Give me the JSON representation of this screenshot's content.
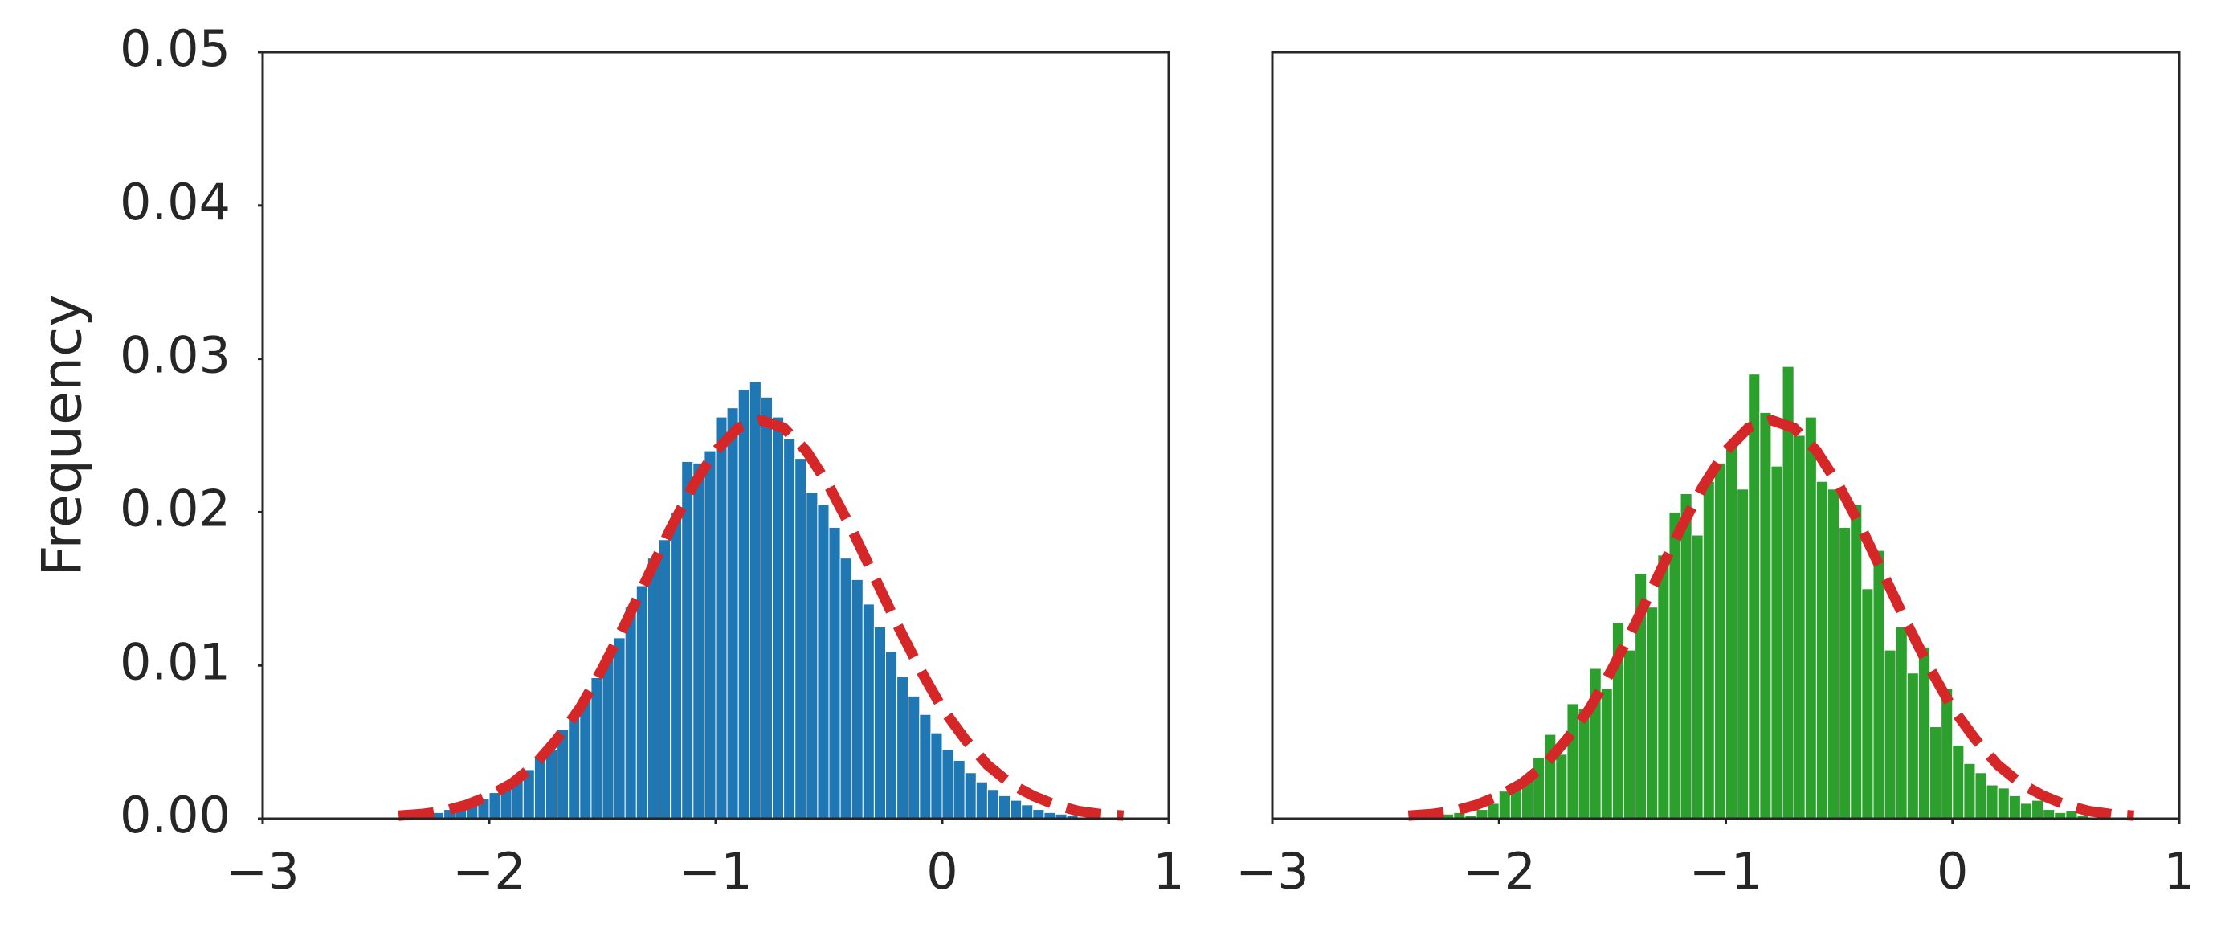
{
  "chart_data": [
    {
      "type": "histogram",
      "ylabel": "Frequency",
      "color": "#1f77b4",
      "bins": [
        -2.3,
        -2.25,
        -2.2,
        -2.15,
        -2.1,
        -2.05,
        -2.0,
        -1.95,
        -1.9,
        -1.85,
        -1.8,
        -1.75,
        -1.7,
        -1.65,
        -1.6,
        -1.55,
        -1.5,
        -1.45,
        -1.4,
        -1.35,
        -1.3,
        -1.25,
        -1.2,
        -1.15,
        -1.1,
        -1.05,
        -1.0,
        -0.95,
        -0.9,
        -0.85,
        -0.8,
        -0.75,
        -0.7,
        -0.65,
        -0.6,
        -0.55,
        -0.5,
        -0.45,
        -0.4,
        -0.35,
        -0.3,
        -0.25,
        -0.2,
        -0.15,
        -0.1,
        -0.05,
        0.0,
        0.05,
        0.1,
        0.15,
        0.2,
        0.25,
        0.3,
        0.35,
        0.4,
        0.45,
        0.5,
        0.55,
        0.6,
        0.65,
        0.7
      ],
      "values": [
        0.0002,
        0.0004,
        0.0006,
        0.0009,
        0.001,
        0.0013,
        0.0017,
        0.0021,
        0.0027,
        0.0032,
        0.004,
        0.0045,
        0.0058,
        0.0066,
        0.008,
        0.0092,
        0.0107,
        0.0118,
        0.0138,
        0.0152,
        0.017,
        0.0182,
        0.02,
        0.0233,
        0.0232,
        0.024,
        0.0262,
        0.0268,
        0.028,
        0.0285,
        0.0275,
        0.0262,
        0.0248,
        0.0235,
        0.0213,
        0.0205,
        0.019,
        0.017,
        0.0156,
        0.014,
        0.0125,
        0.0109,
        0.0093,
        0.008,
        0.0068,
        0.0056,
        0.0045,
        0.0038,
        0.003,
        0.0024,
        0.0019,
        0.0015,
        0.0012,
        0.0009,
        0.0006,
        0.0004,
        0.0003,
        0.0002,
        0.0001,
        0.0
      ],
      "fit": {
        "color": "#d62728",
        "x": [
          -2.4,
          -2.3,
          -2.2,
          -2.1,
          -2.0,
          -1.9,
          -1.8,
          -1.7,
          -1.6,
          -1.5,
          -1.4,
          -1.3,
          -1.2,
          -1.1,
          -1.0,
          -0.9,
          -0.8,
          -0.7,
          -0.6,
          -0.5,
          -0.4,
          -0.3,
          -0.2,
          -0.1,
          0.0,
          0.1,
          0.2,
          0.3,
          0.4,
          0.5,
          0.6,
          0.7,
          0.8
        ],
        "values": [
          0.0002,
          0.0003,
          0.0005,
          0.0009,
          0.0015,
          0.0023,
          0.0035,
          0.0052,
          0.0072,
          0.0098,
          0.0127,
          0.0158,
          0.0189,
          0.0217,
          0.024,
          0.0255,
          0.026,
          0.0255,
          0.024,
          0.0217,
          0.0189,
          0.0158,
          0.0127,
          0.0098,
          0.0072,
          0.0052,
          0.0035,
          0.0023,
          0.0015,
          0.0009,
          0.0005,
          0.0003,
          0.0002
        ]
      },
      "xlim": [
        -3,
        1
      ],
      "xticks": [
        {
          "value": -3,
          "label": "−3"
        },
        {
          "value": -2,
          "label": "−2"
        },
        {
          "value": -1,
          "label": "−1"
        },
        0,
        1
      ],
      "ylim": [
        0,
        0.05
      ],
      "yticks": [
        {
          "value": 0,
          "label": "0.00"
        },
        0.01,
        0.02,
        0.03,
        0.04,
        0.05
      ]
    },
    {
      "type": "histogram",
      "color": "#2ca02c",
      "bins": [
        -2.3,
        -2.25,
        -2.2,
        -2.15,
        -2.1,
        -2.05,
        -2.0,
        -1.95,
        -1.9,
        -1.85,
        -1.8,
        -1.75,
        -1.7,
        -1.65,
        -1.6,
        -1.55,
        -1.5,
        -1.45,
        -1.4,
        -1.35,
        -1.3,
        -1.25,
        -1.2,
        -1.15,
        -1.1,
        -1.05,
        -1.0,
        -0.95,
        -0.9,
        -0.85,
        -0.8,
        -0.75,
        -0.7,
        -0.65,
        -0.6,
        -0.55,
        -0.5,
        -0.45,
        -0.4,
        -0.35,
        -0.3,
        -0.25,
        -0.2,
        -0.15,
        -0.1,
        -0.05,
        0.0,
        0.05,
        0.1,
        0.15,
        0.2,
        0.25,
        0.3,
        0.35,
        0.4,
        0.45,
        0.5,
        0.55,
        0.6,
        0.65,
        0.7
      ],
      "values": [
        0.0,
        0.0003,
        0.0004,
        0.0002,
        0.0006,
        0.001,
        0.0018,
        0.002,
        0.0025,
        0.004,
        0.0055,
        0.0042,
        0.0075,
        0.0072,
        0.0098,
        0.0085,
        0.0128,
        0.011,
        0.016,
        0.0138,
        0.0172,
        0.02,
        0.0212,
        0.0185,
        0.022,
        0.0232,
        0.0245,
        0.0215,
        0.029,
        0.0265,
        0.023,
        0.0295,
        0.025,
        0.0262,
        0.022,
        0.0215,
        0.019,
        0.0205,
        0.015,
        0.0175,
        0.011,
        0.0125,
        0.0095,
        0.0112,
        0.006,
        0.0085,
        0.0048,
        0.0036,
        0.003,
        0.0022,
        0.002,
        0.0015,
        0.001,
        0.0012,
        0.0006,
        0.0004,
        0.0005,
        0.0002,
        0.0001,
        0.0
      ],
      "fit": {
        "color": "#d62728",
        "x": [
          -2.4,
          -2.3,
          -2.2,
          -2.1,
          -2.0,
          -1.9,
          -1.8,
          -1.7,
          -1.6,
          -1.5,
          -1.4,
          -1.3,
          -1.2,
          -1.1,
          -1.0,
          -0.9,
          -0.8,
          -0.7,
          -0.6,
          -0.5,
          -0.4,
          -0.3,
          -0.2,
          -0.1,
          0.0,
          0.1,
          0.2,
          0.3,
          0.4,
          0.5,
          0.6,
          0.7,
          0.8
        ],
        "values": [
          0.0002,
          0.0003,
          0.0005,
          0.0009,
          0.0015,
          0.0023,
          0.0035,
          0.0052,
          0.0072,
          0.0098,
          0.0127,
          0.0158,
          0.0189,
          0.0217,
          0.024,
          0.0255,
          0.026,
          0.0255,
          0.024,
          0.0217,
          0.0189,
          0.0158,
          0.0127,
          0.0098,
          0.0072,
          0.0052,
          0.0035,
          0.0023,
          0.0015,
          0.0009,
          0.0005,
          0.0003,
          0.0002
        ]
      },
      "xlim": [
        -3,
        1
      ],
      "xticks": [
        {
          "value": -3,
          "label": "−3"
        },
        {
          "value": -2,
          "label": "−2"
        },
        {
          "value": -1,
          "label": "−1"
        },
        0,
        1
      ],
      "ylim": [
        0,
        0.05
      ]
    }
  ]
}
